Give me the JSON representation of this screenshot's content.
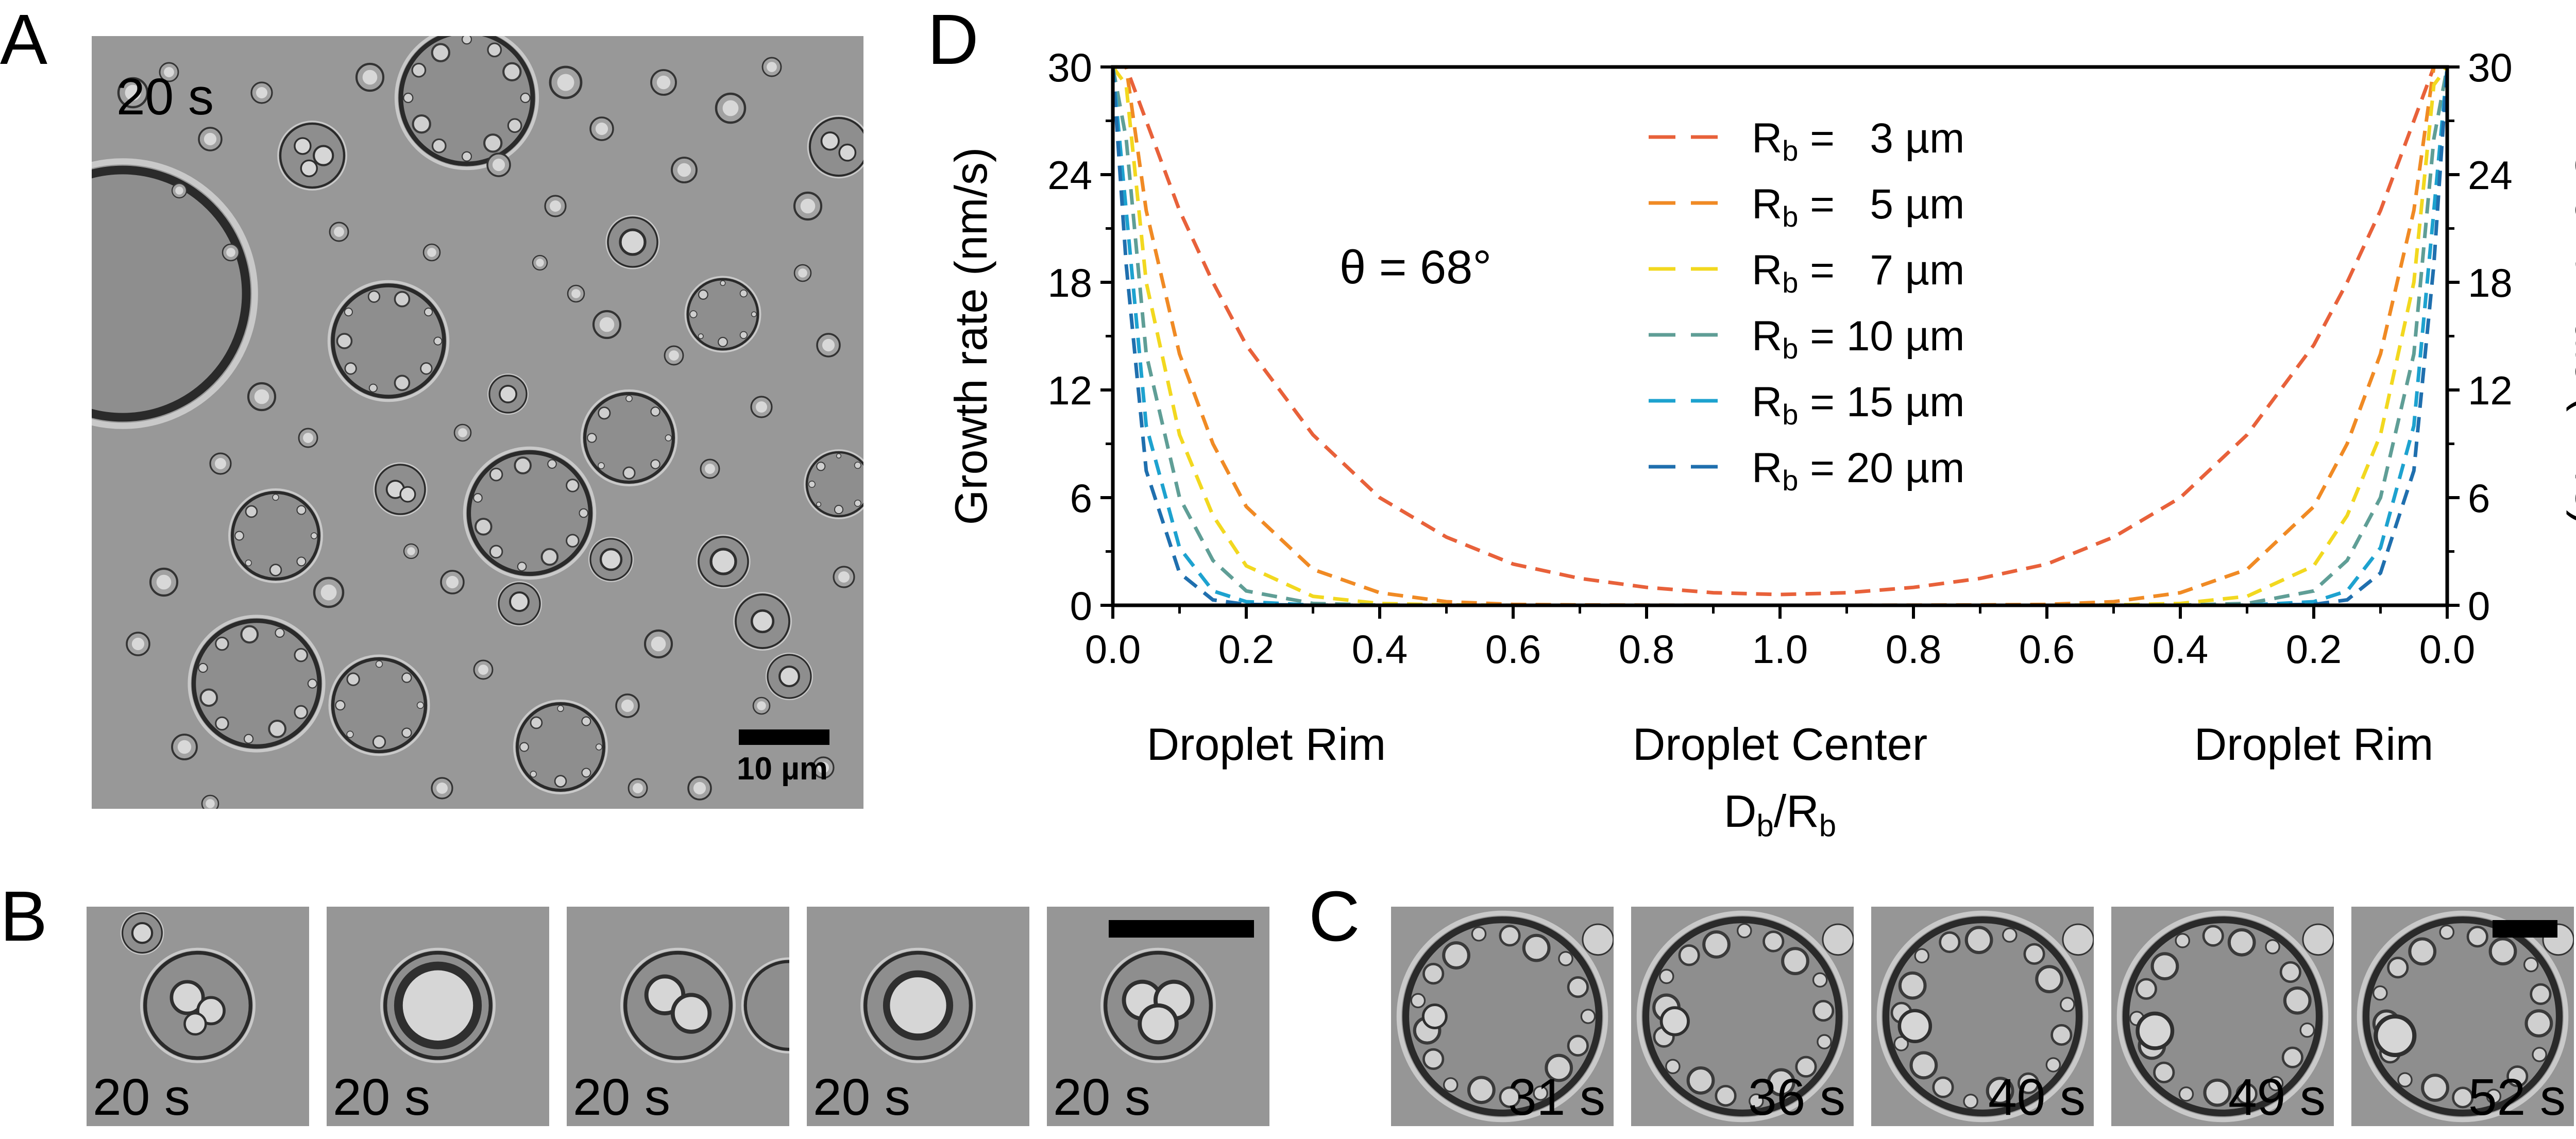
{
  "panels": {
    "A": {
      "letter": "A",
      "time": "20 s",
      "scale_label": "10 µm"
    },
    "B": {
      "letter": "B",
      "frames": [
        "20 s",
        "20 s",
        "20 s",
        "20 s",
        "20 s"
      ]
    },
    "C": {
      "letter": "C",
      "frames": [
        "31 s",
        "36 s",
        "40 s",
        "49 s",
        "52 s"
      ]
    },
    "D": {
      "letter": "D",
      "annotation": "θ = 68°"
    }
  },
  "chart_data": {
    "type": "line",
    "ylabel_left": "Growth rate (nm/s)",
    "ylabel_right": "Growth rate (nm/s)",
    "xlabel": "Db/Rb",
    "x_region_labels": [
      "Droplet Rim",
      "Droplet Center",
      "Droplet Rim"
    ],
    "x_ticks": [
      "0.0",
      "0.2",
      "0.4",
      "0.6",
      "0.8",
      "1.0",
      "0.8",
      "0.6",
      "0.4",
      "0.2",
      "0.0"
    ],
    "y_ticks": [
      "0",
      "6",
      "12",
      "18",
      "24",
      "30"
    ],
    "ylim": [
      0,
      30
    ],
    "x_position_range": [
      0,
      2
    ],
    "line_style": "dashed",
    "legend_placement": "top-center",
    "x": [
      0.0,
      0.02,
      0.05,
      0.1,
      0.15,
      0.2,
      0.3,
      0.4,
      0.5,
      0.6,
      0.7,
      0.8,
      0.9,
      1.0,
      1.1,
      1.2,
      1.3,
      1.4,
      1.5,
      1.6,
      1.7,
      1.8,
      1.85,
      1.9,
      1.95,
      1.98,
      2.0
    ],
    "series": [
      {
        "name": "Rb =   3 µm",
        "color": "#e8613a",
        "values": [
          30,
          30,
          27,
          22,
          18,
          14.5,
          9.5,
          6,
          3.8,
          2.3,
          1.5,
          1.0,
          0.7,
          0.6,
          0.7,
          1.0,
          1.5,
          2.3,
          3.8,
          6,
          9.5,
          14.5,
          18,
          22,
          27,
          30,
          30
        ]
      },
      {
        "name": "Rb =   5 µm",
        "color": "#f08a24",
        "values": [
          30,
          30,
          22,
          14,
          9,
          5.5,
          2,
          0.7,
          0.2,
          0.05,
          0.02,
          0.01,
          0,
          0,
          0,
          0.01,
          0.02,
          0.05,
          0.2,
          0.7,
          2,
          5.5,
          9,
          14,
          22,
          30,
          30
        ]
      },
      {
        "name": "Rb =   7 µm",
        "color": "#f2d81f",
        "values": [
          30,
          29,
          18,
          9.5,
          5,
          2.2,
          0.5,
          0.1,
          0.02,
          0,
          0,
          0,
          0,
          0,
          0,
          0,
          0,
          0,
          0.02,
          0.1,
          0.5,
          2.2,
          5,
          9.5,
          18,
          29,
          30
        ]
      },
      {
        "name": "Rb = 10 µm",
        "color": "#5f9e96",
        "values": [
          30,
          26,
          14,
          6,
          2.5,
          0.8,
          0.1,
          0.01,
          0,
          0,
          0,
          0,
          0,
          0,
          0,
          0,
          0,
          0,
          0,
          0.01,
          0.1,
          0.8,
          2.5,
          6,
          14,
          26,
          30
        ]
      },
      {
        "name": "Rb = 15 µm",
        "color": "#1da2cf",
        "values": [
          30,
          22,
          10,
          3.2,
          0.8,
          0.2,
          0.01,
          0,
          0,
          0,
          0,
          0,
          0,
          0,
          0,
          0,
          0,
          0,
          0,
          0,
          0.01,
          0.2,
          0.8,
          3.2,
          10,
          22,
          30
        ]
      },
      {
        "name": "Rb = 20 µm",
        "color": "#1f6fae",
        "values": [
          30,
          19,
          7.5,
          1.8,
          0.3,
          0.05,
          0,
          0,
          0,
          0,
          0,
          0,
          0,
          0,
          0,
          0,
          0,
          0,
          0,
          0,
          0,
          0.05,
          0.3,
          1.8,
          7.5,
          19,
          30
        ]
      }
    ]
  }
}
